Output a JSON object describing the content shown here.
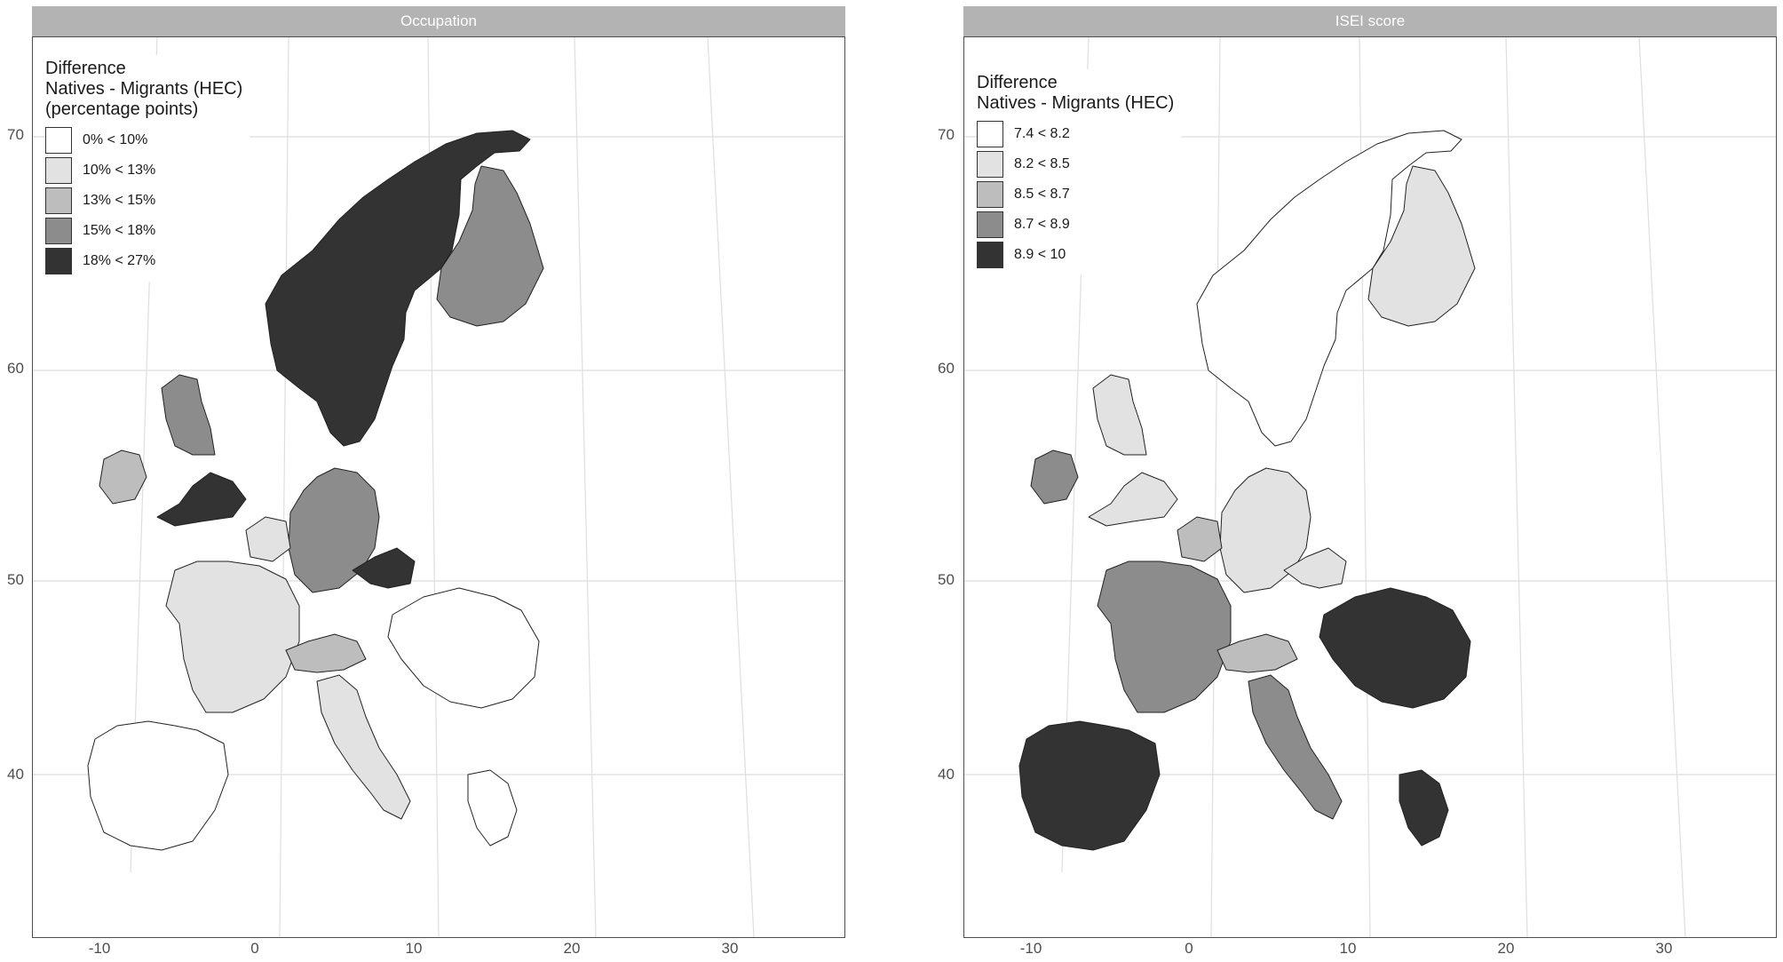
{
  "panels": [
    {
      "id": "left",
      "strip_title": "Occupation",
      "legend_title": [
        "Difference",
        "Natives - Migrants (HEC)",
        "(percentage points)"
      ],
      "legend": [
        {
          "label": "0% < 10%",
          "color": "#ffffff"
        },
        {
          "label": "10% < 13%",
          "color": "#e2e2e2"
        },
        {
          "label": "13% < 15%",
          "color": "#bdbdbd"
        },
        {
          "label": "15% < 18%",
          "color": "#8c8c8c"
        },
        {
          "label": "18% < 27%",
          "color": "#333333"
        }
      ],
      "regions": {
        "scandinavia": "#333333",
        "finland": "#8c8c8c",
        "uk_north": "#8c8c8c",
        "uk_south": "#333333",
        "ireland": "#bdbdbd",
        "germany": "#8c8c8c",
        "czech": "#333333",
        "france": "#e2e2e2",
        "iberia": "#ffffff",
        "italy": "#e2e2e2",
        "alps": "#bdbdbd",
        "east": "#ffffff",
        "greece": "#ffffff",
        "benelux": "#e2e2e2"
      }
    },
    {
      "id": "right",
      "strip_title": "ISEI score",
      "legend_title": [
        "Difference",
        "Natives - Migrants (HEC)"
      ],
      "legend": [
        {
          "label": "7.4 < 8.2",
          "color": "#ffffff"
        },
        {
          "label": "8.2 < 8.5",
          "color": "#e2e2e2"
        },
        {
          "label": "8.5 < 8.7",
          "color": "#bdbdbd"
        },
        {
          "label": "8.7 < 8.9",
          "color": "#8c8c8c"
        },
        {
          "label": "8.9 < 10",
          "color": "#333333"
        }
      ],
      "regions": {
        "scandinavia": "#ffffff",
        "finland": "#e2e2e2",
        "uk_north": "#e2e2e2",
        "uk_south": "#e2e2e2",
        "ireland": "#8c8c8c",
        "germany": "#e2e2e2",
        "czech": "#e2e2e2",
        "france": "#8c8c8c",
        "iberia": "#333333",
        "italy": "#8c8c8c",
        "alps": "#bdbdbd",
        "east": "#333333",
        "greece": "#333333",
        "benelux": "#bdbdbd"
      }
    }
  ],
  "axes": {
    "y_ticks": [
      "70",
      "60",
      "50",
      "40"
    ],
    "x_ticks": [
      "-10",
      "0",
      "10",
      "20",
      "30"
    ]
  }
}
